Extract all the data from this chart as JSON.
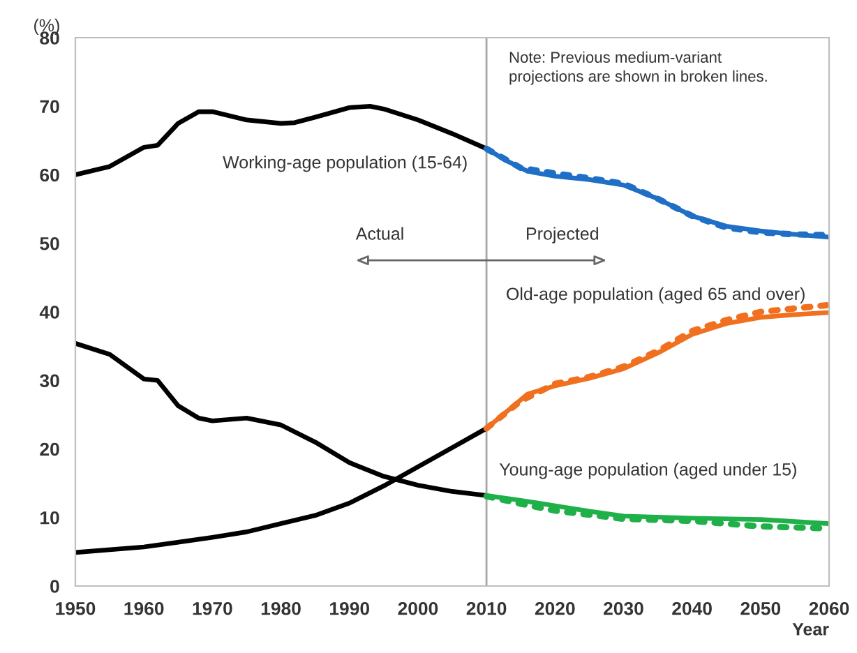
{
  "chart_data": {
    "type": "line",
    "xlabel": "Year",
    "ylabel": "(%)",
    "xlim": [
      1950,
      2060
    ],
    "ylim": [
      0,
      80
    ],
    "xticks": [
      1950,
      1960,
      1970,
      1980,
      1990,
      2000,
      2010,
      2020,
      2030,
      2040,
      2050,
      2060
    ],
    "yticks": [
      0,
      10,
      20,
      30,
      40,
      50,
      60,
      70,
      80
    ],
    "grid": false,
    "legend": false,
    "marker": "none",
    "series": [
      {
        "color": "#000000",
        "line_style": "solid",
        "x": [
          1950,
          1955,
          1960,
          1962,
          1965,
          1968,
          1970,
          1975,
          1980,
          1982,
          1985,
          1990,
          1993,
          1995,
          2000,
          2005,
          2010
        ],
        "values": [
          60,
          61.2,
          64,
          64.3,
          67.5,
          69.2,
          69.2,
          68,
          67.5,
          67.6,
          68.4,
          69.8,
          70,
          69.6,
          68,
          66,
          63.8
        ]
      },
      {
        "color": "#000000",
        "line_style": "solid",
        "x": [
          1950,
          1955,
          1960,
          1962,
          1965,
          1968,
          1970,
          1975,
          1980,
          1985,
          1990,
          1995,
          2000,
          2005,
          2010
        ],
        "values": [
          35.4,
          33.8,
          30.2,
          30,
          26.3,
          24.5,
          24.1,
          24.5,
          23.5,
          21,
          18,
          16,
          14.7,
          13.8,
          13.2
        ]
      },
      {
        "color": "#000000",
        "line_style": "solid",
        "x": [
          1950,
          1960,
          1970,
          1975,
          1980,
          1985,
          1990,
          1995,
          2000,
          2005,
          2010
        ],
        "values": [
          4.9,
          5.7,
          7.1,
          7.9,
          9.1,
          10.3,
          12.1,
          14.6,
          17.4,
          20.2,
          23.0
        ]
      },
      {
        "color": "#1f6fc6",
        "line_style": "dotted",
        "x": [
          2010,
          2015,
          2020,
          2025,
          2030,
          2035,
          2040,
          2045,
          2050,
          2055,
          2060
        ],
        "values": [
          63.8,
          61,
          60.2,
          59.5,
          58.7,
          56.5,
          54,
          52.3,
          51.6,
          51.3,
          51.2
        ]
      },
      {
        "color": "#1f6fc6",
        "line_style": "solid",
        "x": [
          2010,
          2013,
          2016,
          2020,
          2025,
          2030,
          2035,
          2040,
          2045,
          2050,
          2055,
          2060
        ],
        "values": [
          63.8,
          62,
          60.5,
          59.8,
          59.3,
          58.5,
          56.5,
          54,
          52.5,
          51.8,
          51.3,
          50.9
        ]
      },
      {
        "color": "#f07020",
        "line_style": "dotted",
        "x": [
          2010,
          2015,
          2020,
          2025,
          2030,
          2035,
          2040,
          2045,
          2050,
          2055,
          2060
        ],
        "values": [
          23,
          27,
          29.5,
          30.5,
          32,
          34.3,
          37.2,
          38.8,
          40,
          40.5,
          41
        ]
      },
      {
        "color": "#f07020",
        "line_style": "solid",
        "x": [
          2010,
          2013,
          2016,
          2020,
          2025,
          2030,
          2035,
          2040,
          2045,
          2050,
          2055,
          2060
        ],
        "values": [
          23,
          25.5,
          28,
          29.2,
          30.3,
          31.7,
          34,
          36.7,
          38.3,
          39.2,
          39.6,
          39.9
        ]
      },
      {
        "color": "#1fb04a",
        "line_style": "dotted",
        "x": [
          2010,
          2015,
          2020,
          2025,
          2030,
          2040,
          2050,
          2060
        ],
        "values": [
          13.1,
          12,
          11,
          10.4,
          9.8,
          9.5,
          8.7,
          8.4
        ]
      },
      {
        "color": "#1fb04a",
        "line_style": "solid",
        "x": [
          2010,
          2015,
          2020,
          2025,
          2030,
          2040,
          2050,
          2060
        ],
        "values": [
          13.2,
          12.5,
          11.7,
          10.9,
          10.2,
          9.9,
          9.7,
          9.1
        ]
      }
    ],
    "ref_lines": [
      {
        "axis": "x",
        "value": 2010,
        "color": "#a6a6a6"
      }
    ],
    "annotations": [
      "Note: Previous medium-variant\nprojections are shown in broken lines.",
      "Working-age population (15-64)",
      "Old-age population (aged 65 and over)",
      "Young-age population (aged under 15)",
      "Actual",
      "Projected"
    ]
  }
}
